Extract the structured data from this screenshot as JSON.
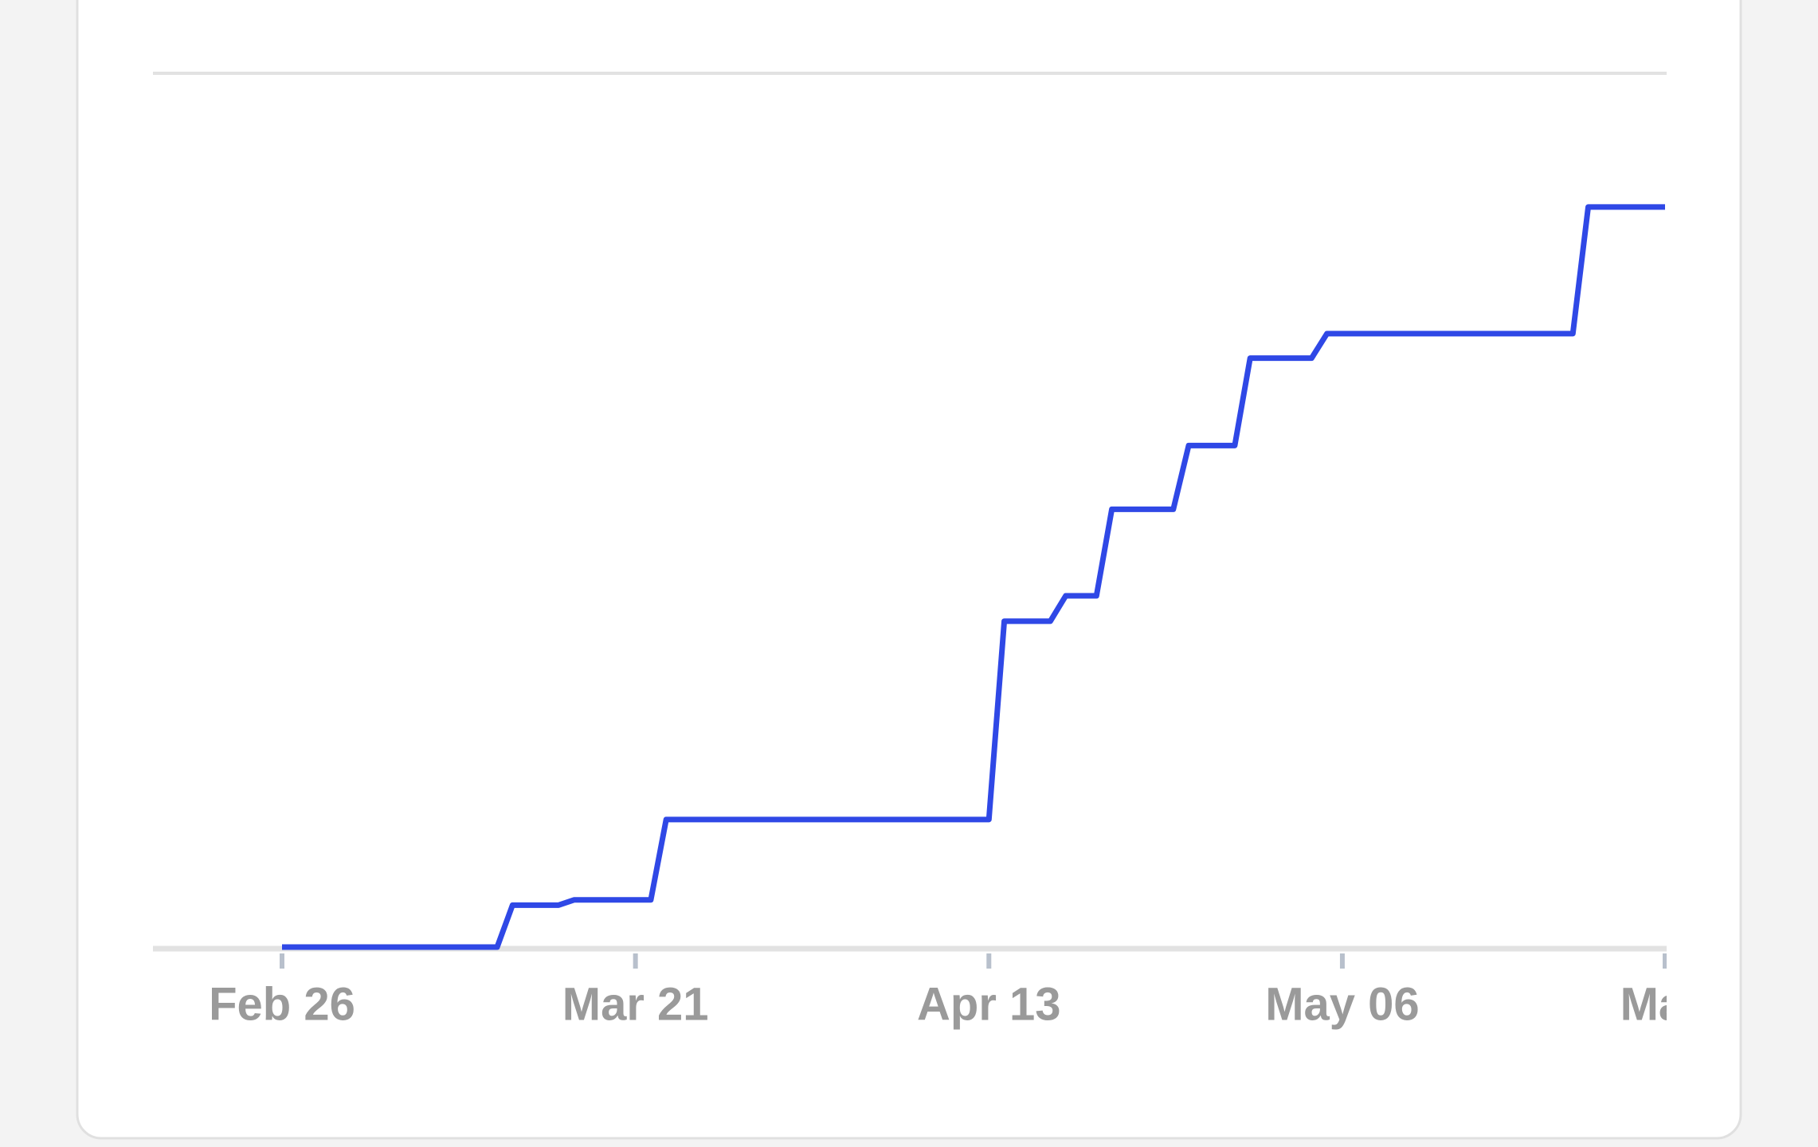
{
  "chart_data": {
    "type": "line",
    "categories": [
      "Feb 26",
      null,
      null,
      null,
      null,
      null,
      null,
      null,
      null,
      null,
      null,
      null,
      null,
      null,
      null,
      null,
      null,
      null,
      null,
      null,
      null,
      null,
      null,
      "Mar 21",
      null,
      null,
      null,
      null,
      null,
      null,
      null,
      null,
      null,
      null,
      null,
      null,
      null,
      null,
      null,
      null,
      null,
      null,
      null,
      null,
      null,
      null,
      "Apr 13",
      null,
      null,
      null,
      null,
      null,
      null,
      null,
      null,
      null,
      null,
      null,
      null,
      null,
      null,
      null,
      null,
      null,
      null,
      null,
      null,
      null,
      null,
      "May 06",
      null,
      null,
      null,
      null,
      null,
      null,
      null,
      null,
      null,
      null,
      null,
      null,
      null,
      null,
      null,
      null,
      null,
      null,
      null,
      null,
      "May"
    ],
    "series": [
      {
        "color": "#2f48e6",
        "values": [
          0,
          0,
          0,
          0,
          0,
          0,
          0,
          0,
          0,
          0,
          0,
          0,
          0,
          0,
          0,
          4.8,
          4.8,
          4.8,
          4.8,
          5.4,
          5.4,
          5.4,
          5.4,
          5.4,
          5.4,
          14.6,
          14.6,
          14.6,
          14.6,
          14.6,
          14.6,
          14.6,
          14.6,
          14.6,
          14.6,
          14.6,
          14.6,
          14.6,
          14.6,
          14.6,
          14.6,
          14.6,
          14.6,
          14.6,
          14.6,
          14.6,
          14.6,
          37.3,
          37.3,
          37.3,
          37.3,
          40.2,
          40.2,
          40.2,
          50.1,
          50.1,
          50.1,
          50.1,
          50.1,
          57.4,
          57.4,
          57.4,
          57.4,
          67.4,
          67.4,
          67.4,
          67.4,
          67.4,
          70.2,
          70.2,
          70.2,
          70.2,
          70.2,
          70.2,
          70.2,
          70.2,
          70.2,
          70.2,
          70.2,
          70.2,
          70.2,
          70.2,
          70.2,
          70.2,
          70.2,
          84.7,
          84.7,
          84.7,
          84.7,
          84.7,
          84.7
        ]
      }
    ],
    "ylim": [
      0,
      100
    ],
    "grid": true
  }
}
